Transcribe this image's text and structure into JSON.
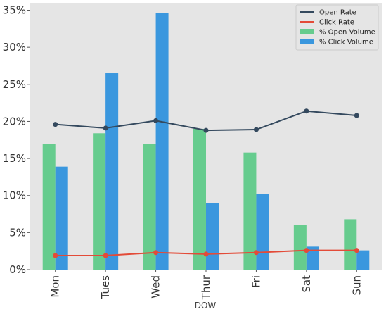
{
  "chart_data": {
    "type": "bar",
    "title": "",
    "xlabel": "DOW",
    "ylabel": "",
    "categories": [
      "Mon",
      "Tues",
      "Wed",
      "Thur",
      "Fri",
      "Sat",
      "Sun"
    ],
    "ylim": [
      0,
      36
    ],
    "yticks": [
      0,
      5,
      10,
      15,
      20,
      25,
      30,
      35
    ],
    "ytick_labels": [
      "0%",
      "5%",
      "10%",
      "15%",
      "20%",
      "25%",
      "30%",
      "35%"
    ],
    "grid": false,
    "background": "#e5e5e5",
    "legend_position": "top-right",
    "bar_series": [
      {
        "name": "% Open Volume",
        "color": "#66cc8e",
        "values": [
          17.0,
          18.4,
          17.0,
          19.0,
          15.8,
          6.0,
          6.8
        ]
      },
      {
        "name": "% Click Volume",
        "color": "#3a97de",
        "values": [
          13.9,
          26.5,
          34.6,
          9.0,
          10.2,
          3.1,
          2.6
        ]
      }
    ],
    "line_series": [
      {
        "name": "Open Rate",
        "color": "#34495e",
        "values": [
          19.6,
          19.1,
          20.1,
          18.8,
          18.9,
          21.4,
          20.8
        ]
      },
      {
        "name": "Click Rate",
        "color": "#e34b38",
        "values": [
          1.9,
          1.9,
          2.3,
          2.1,
          2.3,
          2.6,
          2.6
        ]
      }
    ]
  }
}
